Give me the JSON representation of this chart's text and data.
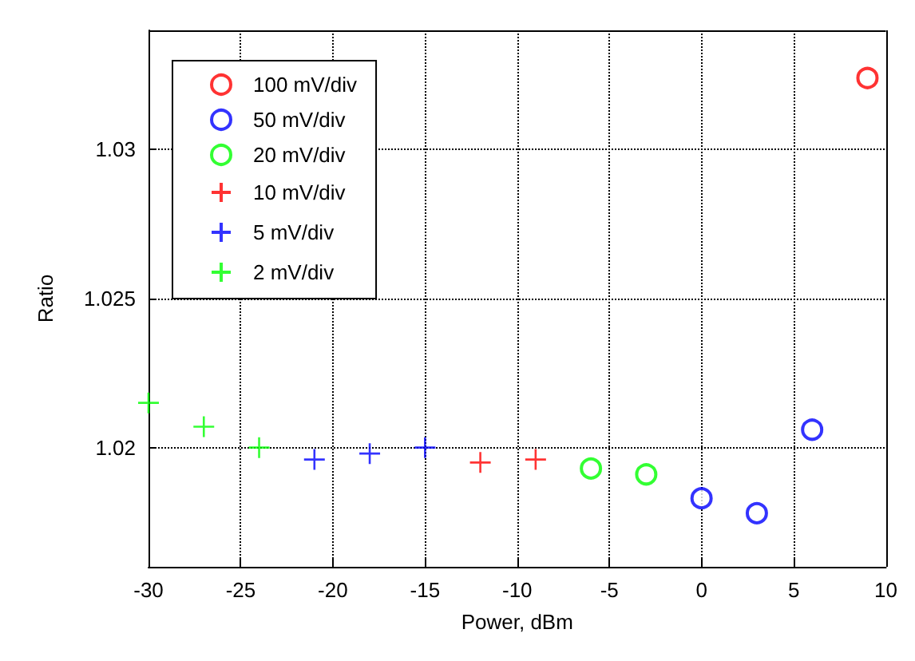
{
  "chart_data": {
    "type": "scatter",
    "xlabel": "Power, dBm",
    "ylabel": "Ratio",
    "xlim": [
      -30,
      10
    ],
    "xticks": [
      -30,
      -25,
      -20,
      -15,
      -10,
      -5,
      0,
      5,
      10
    ],
    "ylim": [
      1.016,
      1.034
    ],
    "yticks": [
      1.02,
      1.025,
      1.03
    ],
    "grid": true,
    "legend": "top left",
    "series": [
      {
        "name": "100 mV/div",
        "color": "#ff0000",
        "marker": "circle",
        "x": [
          9
        ],
        "values": [
          1.0324
        ]
      },
      {
        "name": "50 mV/div",
        "color": "#0000ff",
        "marker": "circle",
        "x": [
          0,
          3,
          6
        ],
        "values": [
          1.0183,
          1.0178,
          1.0206
        ]
      },
      {
        "name": "20 mV/div",
        "color": "#00ff00",
        "marker": "circle",
        "x": [
          -6,
          -3
        ],
        "values": [
          1.0193,
          1.0191
        ]
      },
      {
        "name": "10 mV/div",
        "color": "#ff0000",
        "marker": "cross",
        "x": [
          -12,
          -9
        ],
        "values": [
          1.0195,
          1.0196
        ]
      },
      {
        "name": "5 mV/div",
        "color": "#0000ff",
        "marker": "cross",
        "x": [
          -21,
          -18,
          -15
        ],
        "values": [
          1.0196,
          1.0198,
          1.02
        ]
      },
      {
        "name": "2 mV/div",
        "color": "#00ff00",
        "marker": "cross",
        "x": [
          -30,
          -27,
          -24
        ],
        "values": [
          1.0215,
          1.0207,
          1.02
        ]
      }
    ]
  }
}
